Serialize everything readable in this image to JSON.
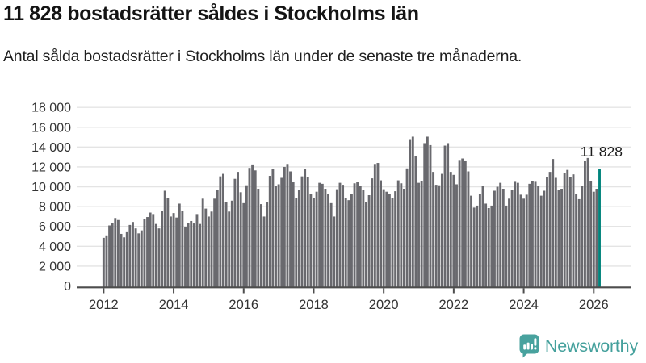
{
  "header": {
    "title": "11 828 bostadsrätter såldes i Stockholms län",
    "subtitle": "Antal sålda bostadsrätter i Stockholms län under de senaste tre månaderna."
  },
  "chart_data": {
    "type": "bar",
    "title": "11 828 bostadsrätter såldes i Stockholms län",
    "xlabel": "",
    "ylabel": "",
    "x_start": "2012-01",
    "x_interval": "month",
    "x_end": "2026-03",
    "ylim": [
      0,
      18000
    ],
    "grid": "horizontal",
    "legend_position": "none",
    "y_tick_values": [
      0,
      2000,
      4000,
      6000,
      8000,
      10000,
      12000,
      14000,
      16000,
      18000
    ],
    "y_tick_labels": [
      "0",
      "2 000",
      "4 000",
      "6 000",
      "8 000",
      "10 000",
      "12 000",
      "14 000",
      "16 000",
      "18 000"
    ],
    "x_tick_labels": [
      "2012",
      "2014",
      "2016",
      "2018",
      "2020",
      "2022",
      "2024",
      "2026"
    ],
    "values": [
      4850,
      5100,
      6100,
      6350,
      6850,
      6650,
      5250,
      4900,
      5500,
      6150,
      6450,
      5800,
      5300,
      5600,
      6750,
      6950,
      7400,
      7250,
      6250,
      5800,
      7600,
      9600,
      8900,
      7000,
      7350,
      6900,
      8300,
      7600,
      5900,
      6350,
      6550,
      6300,
      7250,
      6250,
      8800,
      7800,
      7000,
      7500,
      8800,
      9700,
      11050,
      11300,
      8500,
      7500,
      8600,
      10800,
      11500,
      9450,
      8350,
      10150,
      11900,
      12250,
      11650,
      9800,
      8250,
      7000,
      8500,
      11100,
      11800,
      10100,
      10250,
      10900,
      12000,
      12300,
      11550,
      10450,
      8850,
      9650,
      11050,
      11800,
      10950,
      9250,
      8900,
      9500,
      10400,
      10300,
      9800,
      9250,
      8350,
      7000,
      9750,
      10400,
      10200,
      8850,
      8650,
      9250,
      10350,
      10450,
      10100,
      9650,
      8450,
      9150,
      10850,
      12300,
      12400,
      10650,
      9750,
      9500,
      9300,
      8850,
      9550,
      10650,
      10350,
      9800,
      11850,
      14800,
      15050,
      13100,
      10400,
      10550,
      14400,
      15050,
      14200,
      11500,
      10200,
      10150,
      11300,
      14150,
      14400,
      11500,
      11200,
      10250,
      12700,
      12850,
      12650,
      11550,
      9100,
      7900,
      8100,
      9300,
      10050,
      8300,
      7850,
      8100,
      9600,
      10000,
      10400,
      9800,
      8100,
      8800,
      9700,
      10500,
      10400,
      9200,
      8800,
      9200,
      10300,
      10600,
      10500,
      10100,
      9100,
      9600,
      11000,
      11500,
      12800,
      10900,
      9650,
      9800,
      11350,
      11700,
      11000,
      11250,
      9250,
      8750,
      10050,
      12650,
      12900,
      10600,
      9500,
      9800,
      11828
    ],
    "highlight_last": true,
    "annotation": "11 828",
    "annotation_value": 11828,
    "colors": {
      "bar": "#69696e",
      "highlight": "#00847c",
      "grid": "#e4e4e4",
      "axis": "#4d4d4d",
      "tick_text": "#333333",
      "annotation_text": "#1c1c1c"
    }
  },
  "footer": {
    "brand": "Newsworthy",
    "brand_color": "#44a09c"
  }
}
